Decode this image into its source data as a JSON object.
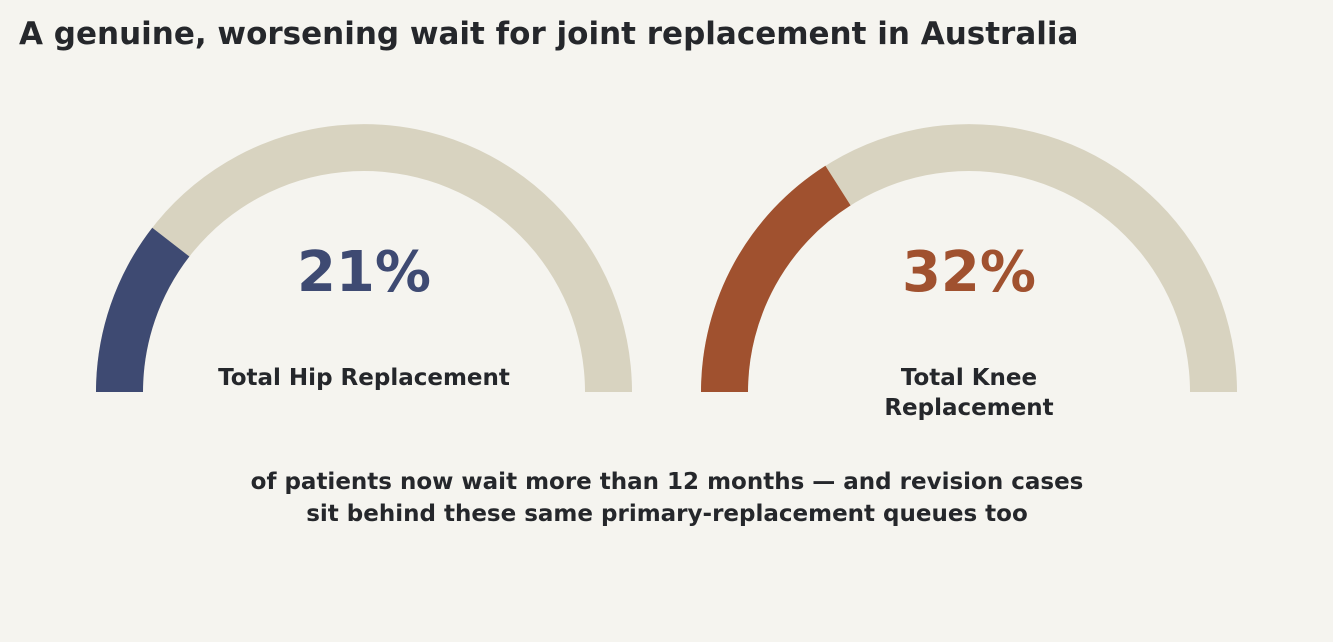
{
  "title": "A genuine, worsening wait for joint replacement in Australia",
  "chart_data": [
    {
      "type": "gauge",
      "value": 21,
      "max": 100,
      "value_label": "21%",
      "label": "Total Hip Replacement",
      "color": "#3e4a72",
      "track_color": "#d8d3c0"
    },
    {
      "type": "gauge",
      "value": 32,
      "max": 100,
      "value_label": "32%",
      "label": "Total Knee Replacement",
      "color": "#a0512f",
      "track_color": "#d8d3c0"
    }
  ],
  "footnote": "of patients now wait more than 12 months — and revision cases\nsit behind these same primary-replacement queues too"
}
